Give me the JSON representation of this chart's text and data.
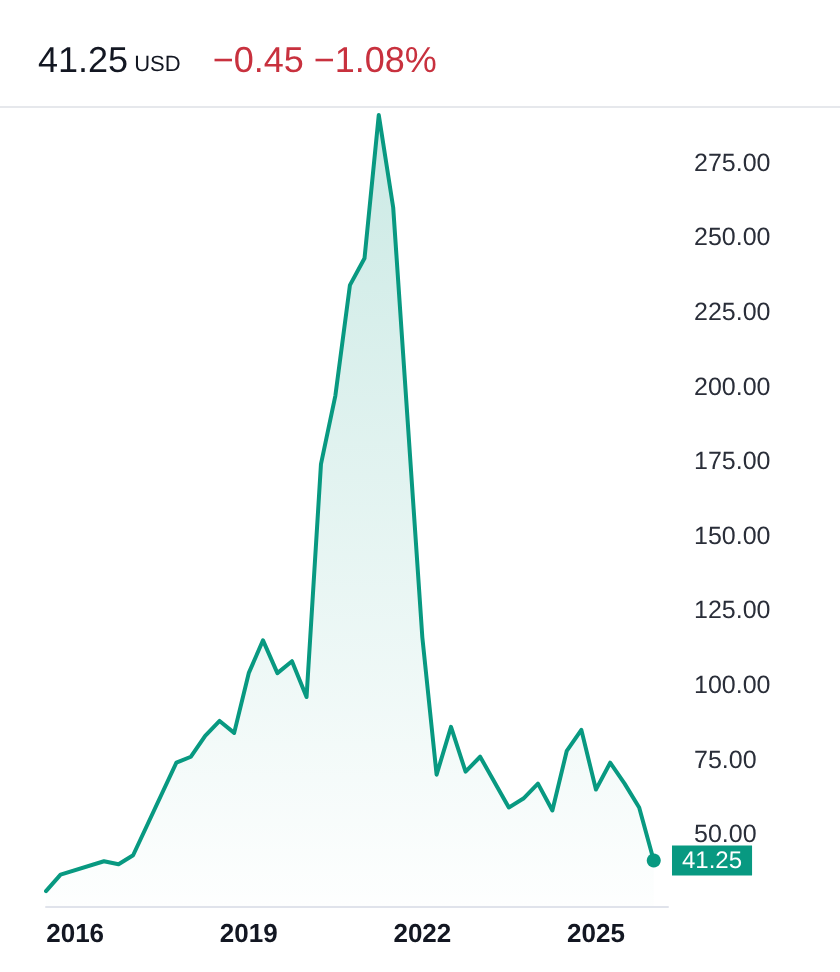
{
  "chart_data": {
    "type": "area",
    "title": "41.25 USD",
    "subtitle": "−0.45 −1.08%",
    "x": [
      "2015-07",
      "2015-10",
      "2016-07",
      "2016-10",
      "2017-01",
      "2017-10",
      "2018-01",
      "2018-04",
      "2018-07",
      "2018-10",
      "2019-01",
      "2019-04",
      "2019-07",
      "2019-10",
      "2020-01",
      "2020-04",
      "2020-07",
      "2020-10",
      "2021-01",
      "2021-04",
      "2021-07",
      "2021-10",
      "2022-01",
      "2022-04",
      "2022-07",
      "2022-10",
      "2023-01",
      "2023-07",
      "2023-10",
      "2024-01",
      "2024-04",
      "2024-07",
      "2024-10",
      "2025-01",
      "2025-04",
      "2025-07",
      "2025-10",
      "2026-01"
    ],
    "values": [
      31,
      36.5,
      41,
      40,
      43,
      74,
      76,
      83,
      88,
      84,
      104,
      115,
      104,
      108,
      96,
      174,
      197,
      234,
      243,
      291,
      260,
      188,
      116,
      70,
      86,
      71,
      76,
      59,
      62,
      67,
      58,
      78,
      85,
      65,
      74,
      67,
      59,
      41.25
    ],
    "color": "#089981",
    "xlim": [
      "2015-07",
      "2026-04"
    ],
    "xticks": [
      "2016",
      "2019",
      "2022",
      "2025"
    ],
    "ylim": [
      26,
      294
    ],
    "yticks": [
      {
        "value": 50,
        "label": "50.00"
      },
      {
        "value": 75,
        "label": "75.00"
      },
      {
        "value": 100,
        "label": "100.00"
      },
      {
        "value": 125,
        "label": "125.00"
      },
      {
        "value": 150,
        "label": "150.00"
      },
      {
        "value": 175,
        "label": "175.00"
      },
      {
        "value": 200,
        "label": "200.00"
      },
      {
        "value": 225,
        "label": "225.00"
      },
      {
        "value": 250,
        "label": "250.00"
      },
      {
        "value": 275,
        "label": "275.00"
      }
    ],
    "annotations": [
      {
        "text": "41.25",
        "x": "2026-01",
        "y": 41.25
      }
    ]
  }
}
